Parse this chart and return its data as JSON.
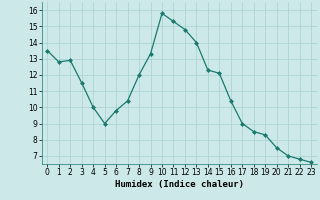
{
  "x": [
    0,
    1,
    2,
    3,
    4,
    5,
    6,
    7,
    8,
    9,
    10,
    11,
    12,
    13,
    14,
    15,
    16,
    17,
    18,
    19,
    20,
    21,
    22,
    23
  ],
  "y": [
    13.5,
    12.8,
    12.9,
    11.5,
    10.0,
    9.0,
    9.8,
    10.4,
    12.0,
    13.3,
    15.8,
    15.3,
    14.8,
    14.0,
    12.3,
    12.1,
    10.4,
    9.0,
    8.5,
    8.3,
    7.5,
    7.0,
    6.8,
    6.6
  ],
  "line_color": "#1a7a6e",
  "marker": "D",
  "marker_size": 2.0,
  "bg_color": "#cce8e8",
  "grid_color": "#aed4d4",
  "xlabel": "Humidex (Indice chaleur)",
  "ylim": [
    6.5,
    16.5
  ],
  "xlim": [
    -0.5,
    23.5
  ],
  "yticks": [
    7,
    8,
    9,
    10,
    11,
    12,
    13,
    14,
    15,
    16
  ],
  "xticks": [
    0,
    1,
    2,
    3,
    4,
    5,
    6,
    7,
    8,
    9,
    10,
    11,
    12,
    13,
    14,
    15,
    16,
    17,
    18,
    19,
    20,
    21,
    22,
    23
  ],
  "tick_fontsize": 5.5,
  "xlabel_fontsize": 6.5,
  "linewidth": 0.9
}
